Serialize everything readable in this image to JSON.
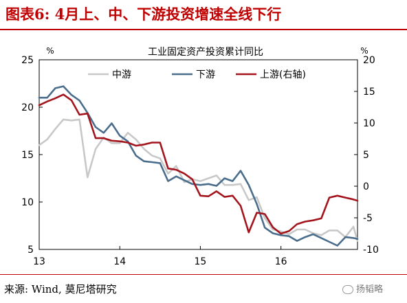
{
  "page": {
    "title": "图表6: 4月上、中、下游投资增速全线下行",
    "source": "来源: Wind, 莫尼塔研究",
    "watermark": "扬韬略"
  },
  "chart_data": {
    "type": "line",
    "title": "工业固定资产投资累计同比",
    "left_unit": "%",
    "right_unit": "%",
    "left_ylim": [
      5,
      25
    ],
    "left_ticks": [
      "25",
      "20",
      "15",
      "10",
      "5"
    ],
    "right_ylim": [
      -10,
      20
    ],
    "right_ticks": [
      "20",
      "15",
      "10",
      "5",
      "0",
      "-5",
      "-10"
    ],
    "x_ticks": [
      "13",
      "14",
      "15",
      "16"
    ],
    "x_range": [
      2013.0,
      2016.95
    ],
    "legend": [
      "中游",
      "下游",
      "上游(右轴)"
    ],
    "colors": {
      "mid": "#c8c8c8",
      "down": "#4a6d8c",
      "up": "#a3141c"
    },
    "series": [
      {
        "name": "中游",
        "axis": "left",
        "x": [
          2013.0,
          2013.1,
          2013.2,
          2013.3,
          2013.4,
          2013.5,
          2013.6,
          2013.7,
          2013.8,
          2013.9,
          2014.0,
          2014.1,
          2014.2,
          2014.3,
          2014.4,
          2014.5,
          2014.6,
          2014.7,
          2014.8,
          2014.9,
          2015.0,
          2015.1,
          2015.2,
          2015.3,
          2015.4,
          2015.5,
          2015.6,
          2015.7,
          2015.8,
          2015.9,
          2016.0,
          2016.1,
          2016.2,
          2016.3,
          2016.4,
          2016.5,
          2016.6,
          2016.7,
          2016.8,
          2016.9,
          2016.95
        ],
        "values": [
          16.0,
          16.6,
          17.7,
          18.7,
          18.6,
          18.7,
          12.6,
          15.6,
          16.8,
          16.2,
          16.2,
          17.3,
          16.6,
          15.6,
          14.9,
          14.6,
          13.0,
          13.8,
          12.1,
          12.4,
          12.2,
          12.5,
          12.8,
          11.8,
          11.8,
          11.9,
          10.2,
          10.5,
          8.3,
          7.1,
          6.9,
          6.6,
          7.1,
          7.1,
          6.7,
          6.5,
          7.0,
          7.0,
          6.3,
          7.4,
          5.9
        ]
      },
      {
        "name": "下游",
        "axis": "left",
        "x": [
          2013.0,
          2013.1,
          2013.2,
          2013.3,
          2013.4,
          2013.5,
          2013.6,
          2013.7,
          2013.8,
          2013.9,
          2014.0,
          2014.1,
          2014.2,
          2014.3,
          2014.4,
          2014.5,
          2014.6,
          2014.7,
          2014.8,
          2014.9,
          2015.0,
          2015.1,
          2015.2,
          2015.3,
          2015.4,
          2015.5,
          2015.6,
          2015.7,
          2015.8,
          2015.9,
          2016.0,
          2016.1,
          2016.2,
          2016.3,
          2016.4,
          2016.5,
          2016.6,
          2016.7,
          2016.8,
          2016.9,
          2016.95
        ],
        "values": [
          21.0,
          21.0,
          22.0,
          22.2,
          21.3,
          20.7,
          19.4,
          17.9,
          17.3,
          18.3,
          17.0,
          16.4,
          14.9,
          14.3,
          14.2,
          14.1,
          12.2,
          12.7,
          12.3,
          11.9,
          11.8,
          11.9,
          11.7,
          12.5,
          12.2,
          13.3,
          11.8,
          9.8,
          7.3,
          6.7,
          6.5,
          6.4,
          5.9,
          6.3,
          6.6,
          6.2,
          5.8,
          5.4,
          6.3,
          6.2,
          6.1
        ]
      },
      {
        "name": "上游(右轴)",
        "axis": "right",
        "x": [
          2013.0,
          2013.1,
          2013.2,
          2013.3,
          2013.4,
          2013.5,
          2013.6,
          2013.7,
          2013.8,
          2013.9,
          2014.0,
          2014.1,
          2014.2,
          2014.3,
          2014.4,
          2014.5,
          2014.6,
          2014.7,
          2014.8,
          2014.9,
          2015.0,
          2015.1,
          2015.2,
          2015.3,
          2015.4,
          2015.5,
          2015.6,
          2015.7,
          2015.8,
          2015.9,
          2016.0,
          2016.1,
          2016.2,
          2016.3,
          2016.4,
          2016.5,
          2016.6,
          2016.7,
          2016.8,
          2016.9,
          2016.95
        ],
        "values": [
          12.8,
          13.4,
          13.9,
          14.5,
          13.6,
          11.3,
          11.5,
          7.6,
          7.6,
          7.2,
          7.1,
          6.9,
          6.4,
          6.6,
          6.9,
          6.9,
          2.8,
          2.6,
          2.0,
          1.1,
          -1.5,
          -1.6,
          -0.8,
          -1.7,
          -1.5,
          -3.1,
          -7.3,
          -4.2,
          -4.4,
          -6.5,
          -7.5,
          -7.1,
          -6.0,
          -5.6,
          -5.4,
          -5.1,
          -1.8,
          -1.5,
          -1.8,
          -2.1,
          -2.3
        ]
      }
    ]
  }
}
